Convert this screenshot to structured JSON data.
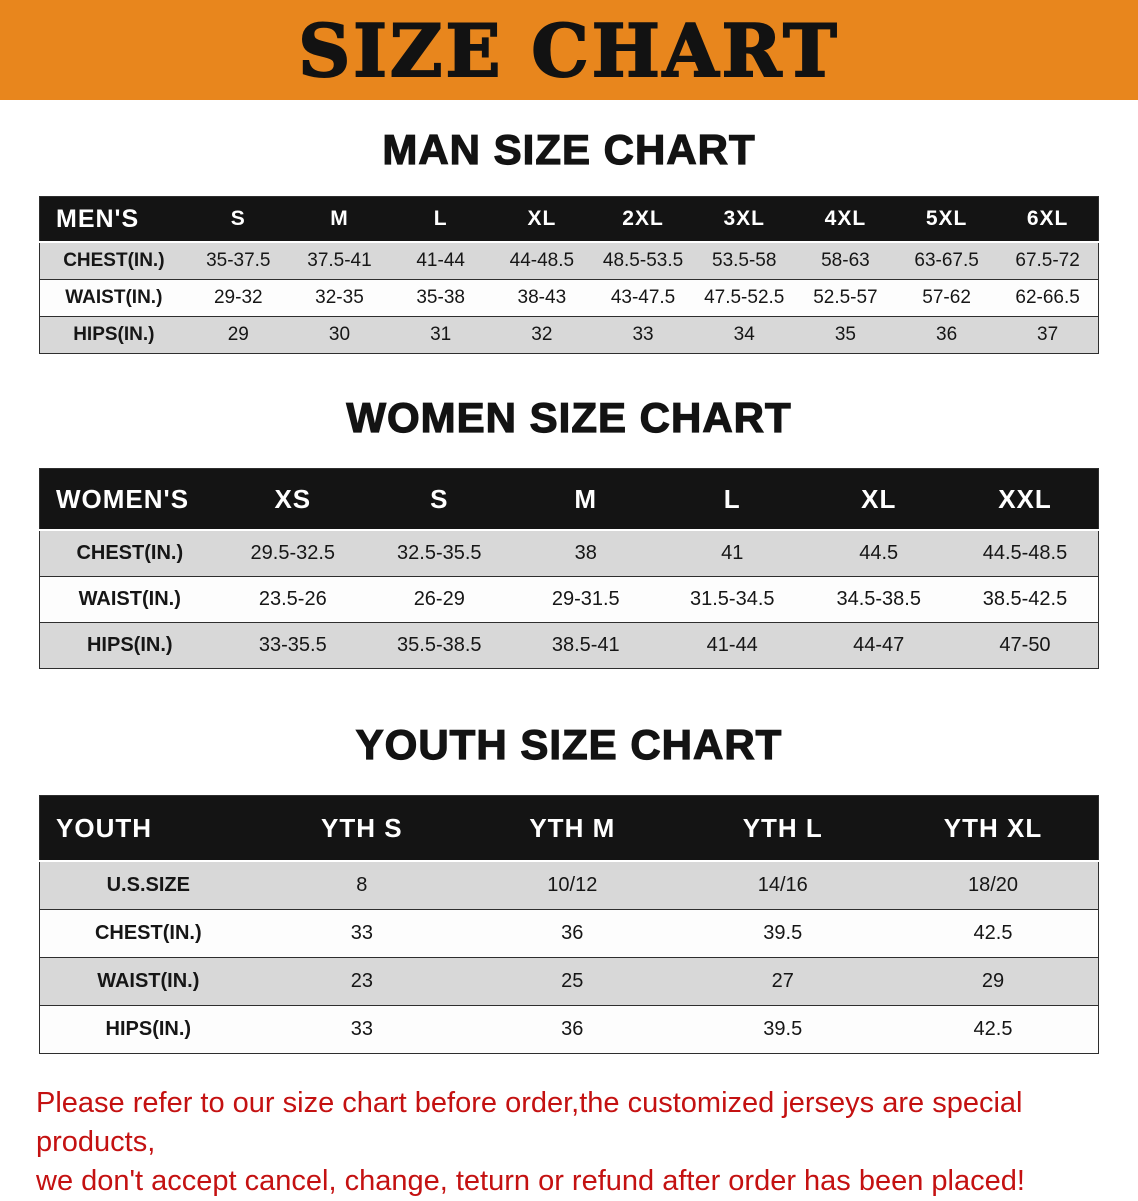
{
  "page": {
    "banner_title": "SIZE CHART",
    "footer_line1": "Please refer to our size chart before order,the customized jerseys are special products,",
    "footer_line2": "we don't accept cancel, change, teturn or refund after order has been placed!"
  },
  "sections": [
    {
      "title": "MAN SIZE CHART",
      "table": {
        "header": [
          "MEN'S",
          "S",
          "M",
          "L",
          "XL",
          "2XL",
          "3XL",
          "4XL",
          "5XL",
          "6XL"
        ],
        "rows": [
          [
            "CHEST(IN.)",
            "35-37.5",
            "37.5-41",
            "41-44",
            "44-48.5",
            "48.5-53.5",
            "53.5-58",
            "58-63",
            "63-67.5",
            "67.5-72"
          ],
          [
            "WAIST(IN.)",
            "29-32",
            "32-35",
            "35-38",
            "38-43",
            "43-47.5",
            "47.5-52.5",
            "52.5-57",
            "57-62",
            "62-66.5"
          ],
          [
            "HIPS(IN.)",
            "29",
            "30",
            "31",
            "32",
            "33",
            "34",
            "35",
            "36",
            "37"
          ]
        ]
      }
    },
    {
      "title": "WOMEN SIZE CHART",
      "table": {
        "header": [
          "WOMEN'S",
          "XS",
          "S",
          "M",
          "L",
          "XL",
          "XXL"
        ],
        "rows": [
          [
            "CHEST(IN.)",
            "29.5-32.5",
            "32.5-35.5",
            "38",
            "41",
            "44.5",
            "44.5-48.5"
          ],
          [
            "WAIST(IN.)",
            "23.5-26",
            "26-29",
            "29-31.5",
            "31.5-34.5",
            "34.5-38.5",
            "38.5-42.5"
          ],
          [
            "HIPS(IN.)",
            "33-35.5",
            "35.5-38.5",
            "38.5-41",
            "41-44",
            "44-47",
            "47-50"
          ]
        ]
      }
    },
    {
      "title": "YOUTH SIZE CHART",
      "table": {
        "header": [
          "YOUTH",
          "YTH S",
          "YTH M",
          "YTH L",
          "YTH XL"
        ],
        "rows": [
          [
            "U.S.SIZE",
            "8",
            "10/12",
            "14/16",
            "18/20"
          ],
          [
            "CHEST(IN.)",
            "33",
            "36",
            "39.5",
            "42.5"
          ],
          [
            "WAIST(IN.)",
            "23",
            "25",
            "27",
            "29"
          ],
          [
            "HIPS(IN.)",
            "33",
            "36",
            "39.5",
            "42.5"
          ]
        ]
      }
    }
  ],
  "colors": {
    "banner_bg": "#e8861d",
    "header_bg": "#141414",
    "row_alt_bg": "#d8d8d8",
    "footer_text": "#c41111"
  }
}
